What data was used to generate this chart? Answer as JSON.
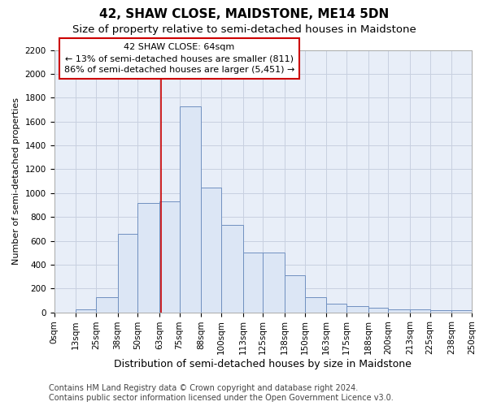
{
  "title1": "42, SHAW CLOSE, MAIDSTONE, ME14 5DN",
  "title2": "Size of property relative to semi-detached houses in Maidstone",
  "xlabel": "Distribution of semi-detached houses by size in Maidstone",
  "ylabel": "Number of semi-detached properties",
  "footer1": "Contains HM Land Registry data © Crown copyright and database right 2024.",
  "footer2": "Contains public sector information licensed under the Open Government Licence v3.0.",
  "bin_edges": [
    0,
    13,
    25,
    38,
    50,
    63,
    75,
    88,
    100,
    113,
    125,
    138,
    150,
    163,
    175,
    188,
    200,
    213,
    225,
    238,
    250
  ],
  "bar_heights": [
    0,
    25,
    130,
    660,
    920,
    930,
    1730,
    1050,
    730,
    500,
    500,
    310,
    125,
    75,
    50,
    40,
    25,
    25,
    20,
    15
  ],
  "bar_color": "#dce6f5",
  "bar_edge_color": "#7090c0",
  "property_size": 64,
  "vline_color": "#cc0000",
  "annotation_line1": "42 SHAW CLOSE: 64sqm",
  "annotation_line2": "← 13% of semi-detached houses are smaller (811)",
  "annotation_line3": "86% of semi-detached houses are larger (5,451) →",
  "annotation_box_color": "#ffffff",
  "annotation_box_edge": "#cc0000",
  "ylim": [
    0,
    2200
  ],
  "yticks": [
    0,
    200,
    400,
    600,
    800,
    1000,
    1200,
    1400,
    1600,
    1800,
    2000,
    2200
  ],
  "grid_color": "#c8d0e0",
  "bg_color": "#e8eef8",
  "title1_fontsize": 11,
  "title2_fontsize": 9.5,
  "xlabel_fontsize": 9,
  "ylabel_fontsize": 8,
  "annot_fontsize": 8,
  "tick_fontsize": 7.5,
  "footer_fontsize": 7
}
